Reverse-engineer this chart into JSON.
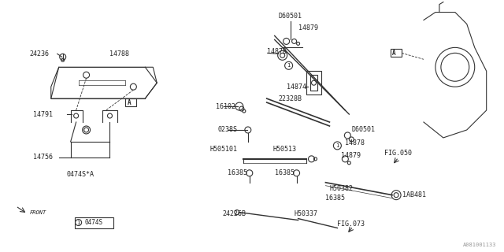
{
  "title": "",
  "bg_color": "#ffffff",
  "line_color": "#333333",
  "text_color": "#222222",
  "fig_width": 6.4,
  "fig_height": 3.2,
  "dpi": 100,
  "watermark": "A081001133",
  "left_parts": {
    "cover_label": "14788",
    "clip1_label": "24236",
    "bracket_label": "14791",
    "hose_label": "14756",
    "clamp_label": "0474S*A",
    "legend_label": "0474S",
    "ref_label": "A"
  },
  "right_parts": {
    "top_label": "D60501",
    "bolt_label": "14879",
    "grommet_label": "14878",
    "bracket2_label": "14874",
    "pipe_label": "16102",
    "pipe2_label": "22328B",
    "screw_label": "0238S",
    "hose1_label": "H505101",
    "hose2_label": "H50513",
    "clamp1_label": "16385",
    "clamp2_label": "16385",
    "clamp3_label": "16385",
    "bolt2_label": "D60501",
    "bolt3_label": "14878",
    "bolt4_label": "14879",
    "fig050_label": "FIG.050",
    "hose3_label": "H50382",
    "clamp4_label": "1AB481",
    "pipe3_label": "24226B",
    "hose4_label": "H50337",
    "fig073_label": "FIG.073",
    "ref_label": "A"
  }
}
